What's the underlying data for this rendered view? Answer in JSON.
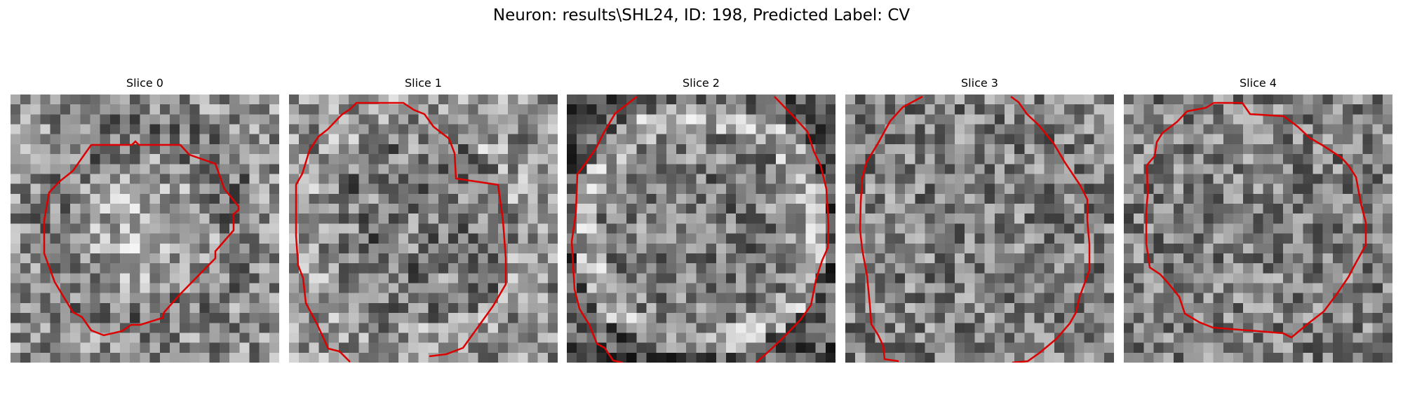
{
  "figure": {
    "title": "Neuron: results\\SHL24, ID: 198, Predicted Label: CV"
  },
  "panels": [
    {
      "title": "Slice 0",
      "contour_color": "#dd0000",
      "pattern": "bright-center-blob"
    },
    {
      "title": "Slice 1",
      "contour_color": "#dd0000",
      "pattern": "large-cell-bright-ring"
    },
    {
      "title": "Slice 2",
      "contour_color": "#dd0000",
      "pattern": "dark-ring-bright-interior"
    },
    {
      "title": "Slice 3",
      "contour_color": "#dd0000",
      "pattern": "noise"
    },
    {
      "title": "Slice 4",
      "contour_color": "#dd0000",
      "pattern": "noise"
    }
  ]
}
